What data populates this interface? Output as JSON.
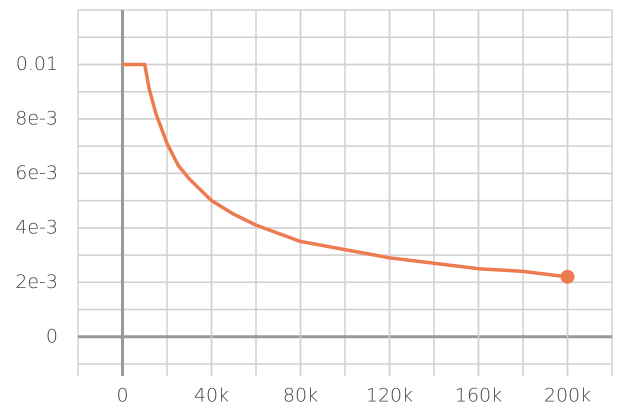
{
  "chart_data": {
    "type": "line",
    "x": [
      0,
      10000,
      12000,
      15000,
      20000,
      25000,
      30000,
      40000,
      50000,
      60000,
      80000,
      100000,
      120000,
      140000,
      160000,
      180000,
      200000
    ],
    "series": [
      {
        "color": "#ed7b4f",
        "values": [
          0.01,
          0.01,
          0.0091,
          0.0082,
          0.0071,
          0.0063,
          0.0058,
          0.005,
          0.0045,
          0.0041,
          0.0035,
          0.0032,
          0.0029,
          0.0027,
          0.0025,
          0.0024,
          0.0022
        ]
      }
    ],
    "xlim": [
      -20000,
      220000
    ],
    "xticks": [
      0,
      {
        "value": 40000,
        "label": "40k"
      },
      {
        "value": 80000,
        "label": "80k"
      },
      {
        "value": 120000,
        "label": "120k"
      },
      {
        "value": 160000,
        "label": "160k"
      },
      {
        "value": 200000,
        "label": "200k"
      }
    ],
    "ylim": [
      -0.001,
      0.012
    ],
    "yticks": [
      0,
      {
        "value": 0.002,
        "label": "2e-3"
      },
      {
        "value": 0.004,
        "label": "4e-3"
      },
      {
        "value": 0.006,
        "label": "6e-3"
      },
      {
        "value": 0.008,
        "label": "8e-3"
      },
      0.01
    ],
    "grid": true
  }
}
